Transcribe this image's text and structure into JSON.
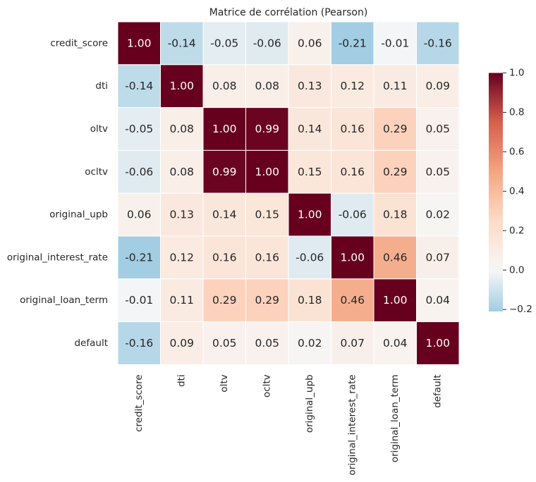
{
  "chart_data": {
    "type": "heatmap",
    "title": "Matrice de corrélation (Pearson)",
    "labels": [
      "credit_score",
      "dti",
      "oltv",
      "ocltv",
      "original_upb",
      "original_interest_rate",
      "original_loan_term",
      "default"
    ],
    "matrix": [
      [
        1.0,
        -0.14,
        -0.05,
        -0.06,
        0.06,
        -0.21,
        -0.01,
        -0.16
      ],
      [
        -0.14,
        1.0,
        0.08,
        0.08,
        0.13,
        0.12,
        0.11,
        0.09
      ],
      [
        -0.05,
        0.08,
        1.0,
        0.99,
        0.14,
        0.16,
        0.29,
        0.05
      ],
      [
        -0.06,
        0.08,
        0.99,
        1.0,
        0.15,
        0.16,
        0.29,
        0.05
      ],
      [
        0.06,
        0.13,
        0.14,
        0.15,
        1.0,
        -0.06,
        0.18,
        0.02
      ],
      [
        -0.21,
        0.12,
        0.16,
        0.16,
        -0.06,
        1.0,
        0.46,
        0.07
      ],
      [
        -0.01,
        0.11,
        0.29,
        0.29,
        0.18,
        0.46,
        1.0,
        0.04
      ],
      [
        -0.16,
        0.09,
        0.05,
        0.05,
        0.02,
        0.07,
        0.04,
        1.0
      ]
    ],
    "value_format": "0.00",
    "colormap": "RdBu_r",
    "color_center": 0,
    "color_range": [
      -0.21,
      1.0
    ],
    "colorbar": {
      "placement": "right",
      "ticks": [
        -0.2,
        0.0,
        0.2,
        0.4,
        0.6,
        0.8,
        1.0
      ],
      "tick_labels": [
        "−0.2",
        "0.0",
        "0.2",
        "0.4",
        "0.6",
        "0.8",
        "1.0"
      ]
    },
    "cell_separator_color": "#ffffff"
  }
}
